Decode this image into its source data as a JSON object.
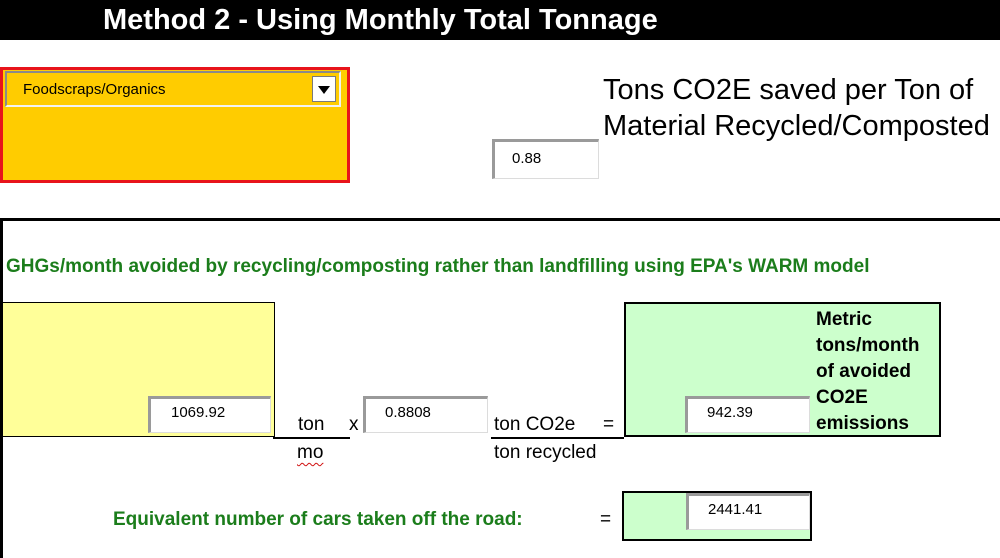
{
  "header": {
    "title": "Method 2 - Using Monthly Total Tonnage"
  },
  "material": {
    "selected": "Foodscraps/Organics"
  },
  "factor": {
    "value": "0.88",
    "caption": "Tons CO2E saved per Ton of Material Recycled/Composted"
  },
  "calculation": {
    "heading": "GHGs/month avoided by recycling/composting rather than landfilling using EPA's WARM model",
    "tonnage_value": "1069.92",
    "unit_numerator": "ton",
    "unit_denominator": "mo",
    "multiply_sign": "x",
    "rate_value": "0.8808",
    "rate_unit_numerator": "ton CO2e",
    "rate_unit_denominator": "ton recycled",
    "equals_sign": "=",
    "result_value": "942.39",
    "result_label": "Metric tons/month of avoided CO2E emissions"
  },
  "cars": {
    "label": "Equivalent number of cars taken off the road:",
    "equals_sign": "=",
    "value": "2441.41"
  },
  "colors": {
    "header_bg": "#000000",
    "selector_bg": "#ffcc00",
    "selector_border": "#e8141b",
    "input_box_bg": "#ffff99",
    "result_bg": "#ccffcc",
    "heading_text": "#1b7d1b"
  }
}
